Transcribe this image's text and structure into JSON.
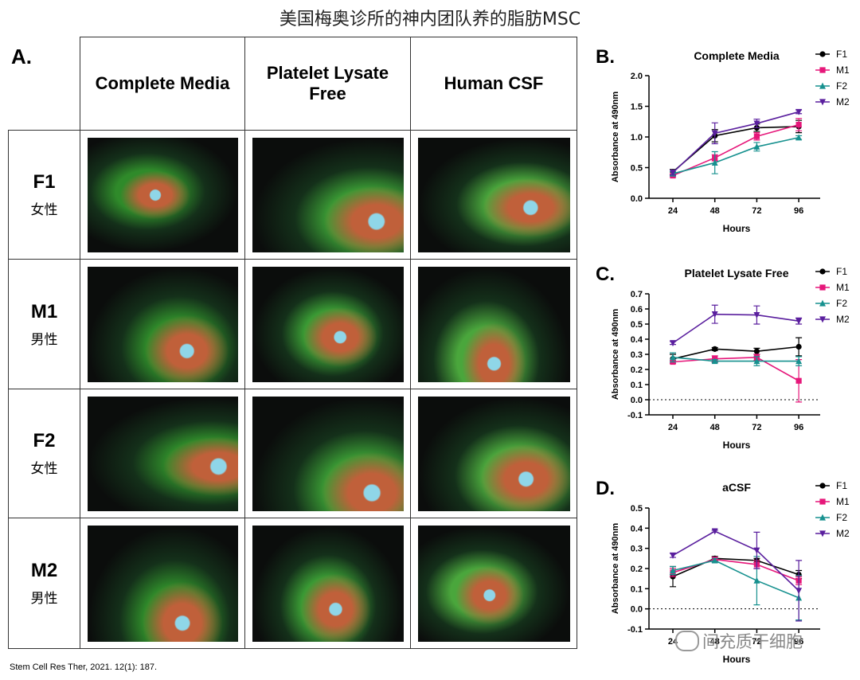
{
  "title": "美国梅奥诊所的神内团队养的脂肪MSC",
  "panel_a": {
    "label": "A.",
    "columns": [
      "Complete Media",
      "Platelet Lysate Free",
      "Human CSF"
    ],
    "rows": [
      {
        "name": "F1",
        "sex": "女性"
      },
      {
        "name": "M1",
        "sex": "男性"
      },
      {
        "name": "F2",
        "sex": "女性"
      },
      {
        "name": "M2",
        "sex": "男性"
      }
    ]
  },
  "chart_data": [
    {
      "type": "line",
      "label": "B.",
      "title": "Complete Media",
      "x_label": "Hours",
      "y_label": "Absorbance at 490nm",
      "categories": [
        "24",
        "48",
        "72",
        "96"
      ],
      "ylim": [
        0,
        2
      ],
      "yticks": [
        {
          "value": 0,
          "label": "0.0"
        },
        {
          "value": 0.5,
          "label": "0.5"
        },
        {
          "value": 1,
          "label": "1.0"
        },
        {
          "value": 1.5,
          "label": "1.5"
        },
        {
          "value": 2,
          "label": "2.0"
        }
      ],
      "legend": "top-right",
      "series": [
        {
          "name": "F1",
          "color": "#000000",
          "marker": "circle",
          "values": [
            0.43,
            1.02,
            1.15,
            1.17
          ],
          "errors": [
            0.04,
            0.1,
            0.06,
            0.1
          ]
        },
        {
          "name": "M1",
          "color": "#e6177a",
          "marker": "square",
          "values": [
            0.37,
            0.66,
            1.01,
            1.2
          ],
          "errors": [
            0.02,
            0.05,
            0.06,
            0.1
          ]
        },
        {
          "name": "F2",
          "color": "#17918f",
          "marker": "triangle",
          "values": [
            0.4,
            0.58,
            0.84,
            0.99
          ],
          "errors": [
            0.03,
            0.18,
            0.07,
            0.03
          ]
        },
        {
          "name": "M2",
          "color": "#5a1f9e",
          "marker": "triangle-down",
          "values": [
            0.42,
            1.06,
            1.22,
            1.41
          ],
          "errors": [
            0.04,
            0.17,
            0.07,
            0.03
          ]
        }
      ]
    },
    {
      "type": "line",
      "label": "C.",
      "title": "Platelet Lysate Free",
      "x_label": "Hours",
      "y_label": "Absorbance at 490nm",
      "categories": [
        "24",
        "48",
        "72",
        "96"
      ],
      "ylim": [
        -0.1,
        0.7
      ],
      "yticks": [
        -0.1,
        {
          "value": 0,
          "label": "0.0"
        },
        0.1,
        0.2,
        0.3,
        0.4,
        0.5,
        0.6,
        0.7
      ],
      "reference_line": 0,
      "legend": "top-right",
      "series": [
        {
          "name": "F1",
          "color": "#000000",
          "marker": "circle",
          "values": [
            0.27,
            0.335,
            0.32,
            0.35
          ],
          "errors": [
            0.03,
            0.01,
            0.02,
            0.06
          ]
        },
        {
          "name": "M1",
          "color": "#e6177a",
          "marker": "square",
          "values": [
            0.25,
            0.27,
            0.28,
            0.125
          ],
          "errors": [
            0.01,
            0.02,
            0.02,
            0.14
          ]
        },
        {
          "name": "F2",
          "color": "#17918f",
          "marker": "triangle",
          "values": [
            0.28,
            0.255,
            0.255,
            0.255
          ],
          "errors": [
            0.03,
            0.01,
            0.03,
            0.03
          ]
        },
        {
          "name": "M2",
          "color": "#5a1f9e",
          "marker": "triangle-down",
          "values": [
            0.375,
            0.565,
            0.56,
            0.52
          ],
          "errors": [
            0.01,
            0.06,
            0.06,
            0.02
          ]
        }
      ]
    },
    {
      "type": "line",
      "label": "D.",
      "title": "aCSF",
      "x_label": "Hours",
      "y_label": "Absorbance at 490nm",
      "categories": [
        "24",
        "48",
        "72",
        "96"
      ],
      "ylim": [
        -0.1,
        0.5
      ],
      "yticks": [
        -0.1,
        {
          "value": 0,
          "label": "0.0"
        },
        0.1,
        0.2,
        0.3,
        0.4,
        0.5
      ],
      "reference_line": 0,
      "legend": "top-right",
      "series": [
        {
          "name": "F1",
          "color": "#000000",
          "marker": "circle",
          "values": [
            0.16,
            0.25,
            0.24,
            0.17
          ],
          "errors": [
            0.05,
            0.01,
            0.01,
            0.02
          ]
        },
        {
          "name": "M1",
          "color": "#e6177a",
          "marker": "square",
          "values": [
            0.18,
            0.245,
            0.22,
            0.14
          ],
          "errors": [
            0.02,
            0.01,
            0.02,
            0.02
          ]
        },
        {
          "name": "F2",
          "color": "#17918f",
          "marker": "triangle",
          "values": [
            0.19,
            0.24,
            0.14,
            0.055
          ],
          "errors": [
            0.02,
            0.01,
            0.12,
            0.11
          ]
        },
        {
          "name": "M2",
          "color": "#5a1f9e",
          "marker": "triangle-down",
          "values": [
            0.265,
            0.385,
            0.29,
            0.09
          ],
          "errors": [
            0.01,
            0.005,
            0.09,
            0.15
          ]
        }
      ]
    }
  ],
  "citation": "Stem Cell Res Ther, 2021. 12(1): 187.",
  "watermark": "间充质干细胞"
}
